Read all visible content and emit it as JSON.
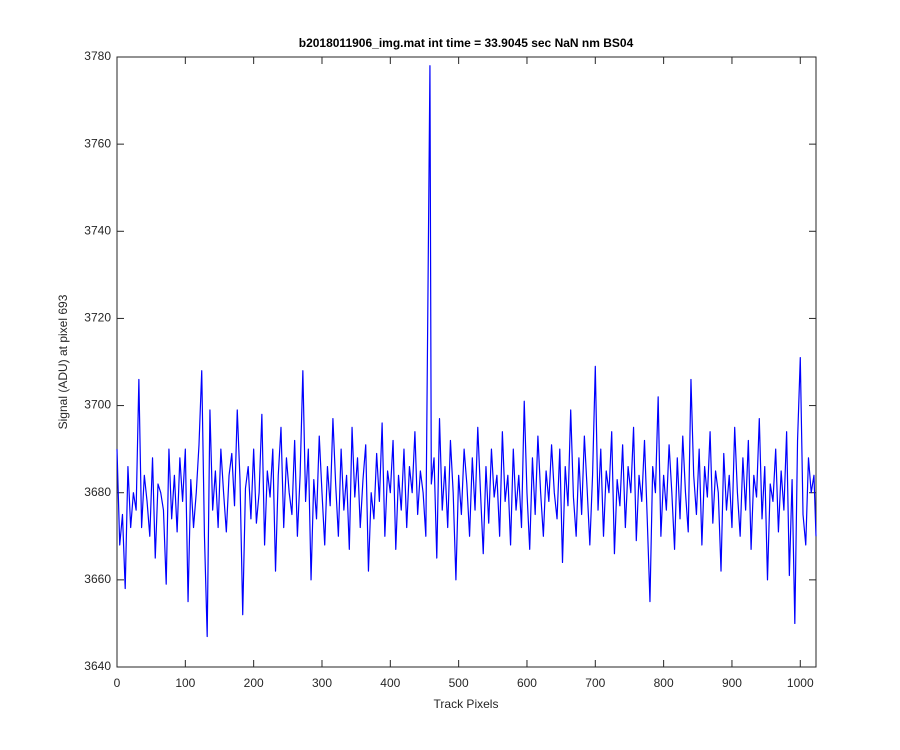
{
  "chart_data": {
    "type": "line",
    "title": "b2018011906_img.mat int time = 33.9045 sec  NaN nm BS04",
    "x_label": "Track Pixels",
    "y_label": "Signal (ADU) at pixel 693",
    "xlim": [
      0,
      1023
    ],
    "ylim": [
      3640,
      3780
    ],
    "xticks": [
      0,
      100,
      200,
      300,
      400,
      500,
      600,
      700,
      800,
      900,
      1000
    ],
    "yticks": [
      3640,
      3660,
      3680,
      3700,
      3720,
      3740,
      3760,
      3780
    ],
    "grid": false,
    "x": [
      0,
      4,
      8,
      12,
      16,
      20,
      24,
      28,
      32,
      36,
      40,
      44,
      48,
      52,
      56,
      60,
      64,
      68,
      72,
      76,
      80,
      84,
      88,
      92,
      96,
      100,
      104,
      108,
      112,
      116,
      120,
      124,
      128,
      132,
      136,
      140,
      144,
      148,
      152,
      156,
      160,
      164,
      168,
      172,
      176,
      180,
      184,
      188,
      192,
      196,
      200,
      204,
      208,
      212,
      216,
      220,
      224,
      228,
      232,
      236,
      240,
      244,
      248,
      252,
      256,
      260,
      264,
      268,
      272,
      276,
      280,
      284,
      288,
      292,
      296,
      300,
      304,
      308,
      312,
      316,
      320,
      324,
      328,
      332,
      336,
      340,
      344,
      348,
      352,
      356,
      360,
      364,
      368,
      372,
      376,
      380,
      384,
      388,
      392,
      396,
      400,
      404,
      408,
      412,
      416,
      420,
      424,
      428,
      432,
      436,
      440,
      444,
      448,
      452,
      458,
      460,
      464,
      468,
      472,
      476,
      480,
      484,
      488,
      492,
      496,
      500,
      504,
      508,
      512,
      516,
      520,
      524,
      528,
      532,
      536,
      540,
      544,
      548,
      552,
      556,
      560,
      564,
      568,
      572,
      576,
      580,
      584,
      588,
      592,
      596,
      600,
      604,
      608,
      612,
      616,
      620,
      624,
      628,
      632,
      636,
      640,
      644,
      648,
      652,
      656,
      660,
      664,
      668,
      672,
      676,
      680,
      684,
      688,
      692,
      696,
      700,
      704,
      708,
      712,
      716,
      720,
      724,
      728,
      732,
      736,
      740,
      744,
      748,
      752,
      756,
      760,
      764,
      768,
      772,
      776,
      780,
      784,
      788,
      792,
      796,
      800,
      804,
      808,
      812,
      816,
      820,
      824,
      828,
      832,
      836,
      840,
      844,
      848,
      852,
      856,
      860,
      864,
      868,
      872,
      876,
      880,
      884,
      888,
      892,
      896,
      900,
      904,
      908,
      912,
      916,
      920,
      924,
      928,
      932,
      936,
      940,
      944,
      948,
      952,
      956,
      960,
      964,
      968,
      972,
      976,
      980,
      984,
      988,
      992,
      996,
      1000,
      1004,
      1008,
      1012,
      1016,
      1020,
      1023
    ],
    "series": [
      {
        "name": "signal",
        "color": "#0000ff",
        "values": [
          3690,
          3668,
          3675,
          3658,
          3686,
          3672,
          3680,
          3676,
          3706,
          3672,
          3684,
          3678,
          3670,
          3688,
          3665,
          3682,
          3680,
          3676,
          3659,
          3690,
          3674,
          3684,
          3671,
          3688,
          3678,
          3690,
          3655,
          3683,
          3672,
          3680,
          3691,
          3708,
          3670,
          3647,
          3699,
          3676,
          3685,
          3672,
          3690,
          3680,
          3671,
          3684,
          3689,
          3677,
          3699,
          3683,
          3652,
          3681,
          3686,
          3674,
          3690,
          3673,
          3680,
          3698,
          3668,
          3685,
          3679,
          3690,
          3662,
          3684,
          3695,
          3672,
          3688,
          3680,
          3675,
          3692,
          3670,
          3684,
          3708,
          3678,
          3690,
          3660,
          3683,
          3674,
          3693,
          3680,
          3668,
          3686,
          3677,
          3697,
          3682,
          3670,
          3690,
          3676,
          3684,
          3667,
          3695,
          3679,
          3688,
          3672,
          3683,
          3691,
          3662,
          3680,
          3674,
          3689,
          3678,
          3696,
          3670,
          3685,
          3680,
          3692,
          3667,
          3684,
          3676,
          3690,
          3672,
          3686,
          3680,
          3694,
          3675,
          3685,
          3680,
          3670,
          3778,
          3682,
          3688,
          3665,
          3697,
          3676,
          3686,
          3672,
          3692,
          3680,
          3660,
          3684,
          3675,
          3690,
          3682,
          3670,
          3688,
          3676,
          3695,
          3680,
          3666,
          3686,
          3673,
          3690,
          3679,
          3684,
          3670,
          3694,
          3678,
          3684,
          3668,
          3690,
          3676,
          3684,
          3672,
          3701,
          3680,
          3667,
          3688,
          3675,
          3693,
          3680,
          3670,
          3685,
          3678,
          3691,
          3680,
          3674,
          3690,
          3664,
          3686,
          3677,
          3699,
          3679,
          3670,
          3688,
          3675,
          3693,
          3681,
          3668,
          3684,
          3709,
          3676,
          3690,
          3670,
          3685,
          3680,
          3694,
          3666,
          3683,
          3677,
          3691,
          3672,
          3686,
          3680,
          3695,
          3669,
          3684,
          3678,
          3692,
          3674,
          3655,
          3686,
          3680,
          3702,
          3670,
          3684,
          3676,
          3691,
          3680,
          3667,
          3688,
          3674,
          3693,
          3680,
          3671,
          3706,
          3684,
          3675,
          3690,
          3668,
          3686,
          3679,
          3694,
          3673,
          3685,
          3680,
          3662,
          3689,
          3676,
          3684,
          3672,
          3695,
          3680,
          3670,
          3688,
          3676,
          3692,
          3667,
          3684,
          3679,
          3697,
          3674,
          3686,
          3660,
          3682,
          3678,
          3690,
          3671,
          3685,
          3676,
          3694,
          3661,
          3683,
          3650,
          3692,
          3711,
          3675,
          3668,
          3688,
          3680,
          3684,
          3670
        ]
      }
    ]
  }
}
